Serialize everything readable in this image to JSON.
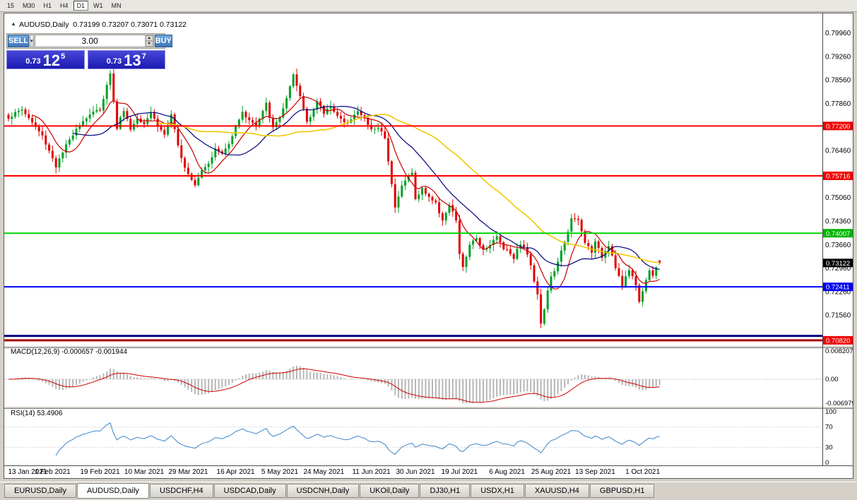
{
  "toolbar": {
    "timeframes": [
      "15",
      "M30",
      "H1",
      "H4",
      "D1",
      "W1",
      "MN"
    ],
    "active": "D1"
  },
  "chart": {
    "title_line": "AUDUSD,Daily  0.73199 0.73207 0.73071 0.73122"
  },
  "icons": {
    "panel_toggle": "▴",
    "dropdown": "▾",
    "spin_up": "▴",
    "spin_down": "▾"
  },
  "trade_panel": {
    "sell_label": "SELL",
    "buy_label": "BUY",
    "volume": "3.00",
    "bid": {
      "prefix": "0.73",
      "big": "12",
      "sup": "5"
    },
    "ask": {
      "prefix": "0.73",
      "big": "13",
      "sup": "7"
    }
  },
  "indicator_labels": {
    "macd": "MACD(12,26,9) -0.000657 -0.001944",
    "rsi": "RSI(14) 53.4906"
  },
  "tabs": {
    "items": [
      "EURUSD,Daily",
      "AUDUSD,Daily",
      "USDCHF,H4",
      "USDCAD,Daily",
      "USDCNH,Daily",
      "UKOil,Daily",
      "DJ30,H1",
      "USDX,H1",
      "XAUUSD,H4",
      "GBPUSD,H1"
    ],
    "active": "AUDUSD,Daily"
  },
  "chart_data": {
    "type": "candlestick",
    "symbol": "AUDUSD",
    "timeframe": "Daily",
    "current_ohlc": {
      "open": 0.73199,
      "high": 0.73207,
      "low": 0.73071,
      "close": 0.73122
    },
    "current_price_label": {
      "text": "0.73122",
      "bg": "#000000"
    },
    "price_range": {
      "top": 0.8055,
      "bottom": 0.7067
    },
    "y_ticks": [
      0.7996,
      0.7926,
      0.7856,
      0.7786,
      0.7646,
      0.7506,
      0.7436,
      0.7366,
      0.7296,
      0.7226,
      0.7156
    ],
    "hlines": [
      {
        "price": 0.772,
        "color": "#ff0000",
        "width": 2,
        "label": "0.77200",
        "label_bg": "#ee0000"
      },
      {
        "price": 0.75716,
        "color": "#ff0000",
        "width": 2,
        "label": "0.75716",
        "label_bg": "#ee0000"
      },
      {
        "price": 0.74007,
        "color": "#00d400",
        "width": 2,
        "label": "0.74007",
        "label_bg": "#00b400"
      },
      {
        "price": 0.72411,
        "color": "#0000ff",
        "width": 2,
        "label": "0.72411",
        "label_bg": "#0000ee"
      },
      {
        "price": 0.7095,
        "color": "#000080",
        "width": 3,
        "label": null
      },
      {
        "price": 0.7082,
        "color": "#aa0000",
        "width": 3,
        "label": "0.70820",
        "label_bg": "#ee0000"
      }
    ],
    "num_candles": 193,
    "candle_spacing": 4.8,
    "x_labels": [
      "13 Jan 2021",
      "1 Feb 2021",
      "19 Feb 2021",
      "10 Mar 2021",
      "29 Mar 2021",
      "16 Apr 2021",
      "5 May 2021",
      "24 May 2021",
      "11 Jun 2021",
      "30 Jun 2021",
      "19 Jul 2021",
      "6 Aug 2021",
      "25 Aug 2021",
      "13 Sep 2021",
      "1 Oct 2021"
    ],
    "x_label_indices": [
      0,
      13,
      27,
      40,
      53,
      67,
      80,
      93,
      107,
      120,
      133,
      147,
      160,
      173,
      187
    ],
    "close_waypoints": [
      [
        0,
        0.7745
      ],
      [
        4,
        0.777
      ],
      [
        7,
        0.773
      ],
      [
        10,
        0.769
      ],
      [
        13,
        0.7625
      ],
      [
        14,
        0.76
      ],
      [
        17,
        0.766
      ],
      [
        20,
        0.7715
      ],
      [
        24,
        0.7755
      ],
      [
        27,
        0.777
      ],
      [
        29,
        0.784
      ],
      [
        30,
        0.788
      ],
      [
        31,
        0.779
      ],
      [
        32,
        0.7715
      ],
      [
        34,
        0.777
      ],
      [
        36,
        0.771
      ],
      [
        38,
        0.7745
      ],
      [
        40,
        0.773
      ],
      [
        42,
        0.7762
      ],
      [
        44,
        0.772
      ],
      [
        46,
        0.7695
      ],
      [
        48,
        0.775
      ],
      [
        50,
        0.766
      ],
      [
        52,
        0.76
      ],
      [
        53,
        0.758
      ],
      [
        55,
        0.7548
      ],
      [
        57,
        0.759
      ],
      [
        59,
        0.7612
      ],
      [
        61,
        0.765
      ],
      [
        63,
        0.7638
      ],
      [
        65,
        0.7665
      ],
      [
        67,
        0.7725
      ],
      [
        69,
        0.7758
      ],
      [
        71,
        0.774
      ],
      [
        73,
        0.7718
      ],
      [
        75,
        0.7762
      ],
      [
        76,
        0.7785
      ],
      [
        78,
        0.7712
      ],
      [
        80,
        0.7748
      ],
      [
        82,
        0.78
      ],
      [
        84,
        0.7868
      ],
      [
        86,
        0.7808
      ],
      [
        88,
        0.7735
      ],
      [
        90,
        0.777
      ],
      [
        91,
        0.7792
      ],
      [
        93,
        0.7758
      ],
      [
        95,
        0.7782
      ],
      [
        97,
        0.775
      ],
      [
        99,
        0.7726
      ],
      [
        101,
        0.7745
      ],
      [
        103,
        0.7762
      ],
      [
        105,
        0.7742
      ],
      [
        107,
        0.7708
      ],
      [
        109,
        0.7715
      ],
      [
        111,
        0.7688
      ],
      [
        112,
        0.7612
      ],
      [
        113,
        0.7552
      ],
      [
        114,
        0.7482
      ],
      [
        116,
        0.754
      ],
      [
        118,
        0.7572
      ],
      [
        119,
        0.7585
      ],
      [
        120,
        0.75
      ],
      [
        122,
        0.7532
      ],
      [
        124,
        0.751
      ],
      [
        126,
        0.7488
      ],
      [
        128,
        0.7442
      ],
      [
        130,
        0.7482
      ],
      [
        132,
        0.744
      ],
      [
        133,
        0.7335
      ],
      [
        134,
        0.7302
      ],
      [
        136,
        0.7362
      ],
      [
        138,
        0.7388
      ],
      [
        140,
        0.7352
      ],
      [
        142,
        0.7368
      ],
      [
        144,
        0.739
      ],
      [
        146,
        0.7358
      ],
      [
        147,
        0.7352
      ],
      [
        149,
        0.733
      ],
      [
        151,
        0.7372
      ],
      [
        153,
        0.734
      ],
      [
        155,
        0.7262
      ],
      [
        156,
        0.7222
      ],
      [
        157,
        0.7135
      ],
      [
        158,
        0.7172
      ],
      [
        159,
        0.7232
      ],
      [
        160,
        0.7268
      ],
      [
        162,
        0.7312
      ],
      [
        164,
        0.7378
      ],
      [
        166,
        0.7442
      ],
      [
        168,
        0.7438
      ],
      [
        170,
        0.7372
      ],
      [
        172,
        0.7348
      ],
      [
        173,
        0.7372
      ],
      [
        175,
        0.7332
      ],
      [
        177,
        0.7368
      ],
      [
        179,
        0.7302
      ],
      [
        181,
        0.7242
      ],
      [
        183,
        0.7292
      ],
      [
        185,
        0.7252
      ],
      [
        186,
        0.7192
      ],
      [
        187,
        0.7232
      ],
      [
        188,
        0.7262
      ],
      [
        189,
        0.7292
      ],
      [
        190,
        0.7272
      ],
      [
        191,
        0.7305
      ],
      [
        192,
        0.73122
      ]
    ],
    "ma": [
      {
        "period": 8,
        "color": "#c80000",
        "width": 1.2
      },
      {
        "period": 20,
        "color": "#000080",
        "width": 1.2
      },
      {
        "period": 45,
        "color": "#f0c800",
        "width": 1.6
      }
    ],
    "colors": {
      "up": "#00a025",
      "down": "#e00000",
      "macd_hist": "#b6b6b6",
      "macd_signal": "#d00000",
      "rsi": "#3d85c8"
    },
    "indicators": {
      "macd": {
        "fast": 12,
        "slow": 26,
        "signal": 9,
        "range": [
          -0.006979,
          0.008207
        ],
        "ticks": [
          "0.008207",
          "0.00",
          "-0.006979"
        ]
      },
      "rsi": {
        "period": 14,
        "value": 53.4906,
        "ticks": [
          100,
          70,
          30,
          0
        ],
        "levels": [
          70,
          30
        ]
      }
    }
  }
}
